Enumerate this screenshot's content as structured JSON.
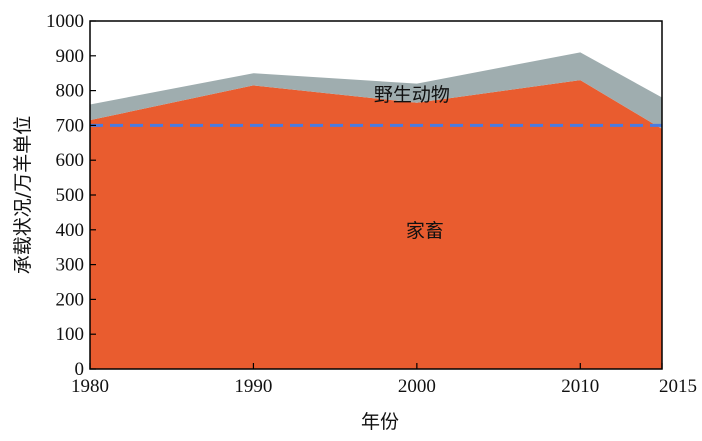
{
  "chart_data": {
    "type": "area",
    "stacked": true,
    "xlabel": "年份",
    "ylabel": "承载状况/万羊单位",
    "x": [
      1980,
      1990,
      2000,
      2010,
      2015
    ],
    "x_tick_labels": [
      "1980",
      "1990",
      "2000",
      "2010",
      "2015"
    ],
    "xlim": [
      1980,
      2015
    ],
    "ylim": [
      0,
      1000
    ],
    "y_ticks": [
      0,
      100,
      200,
      300,
      400,
      500,
      600,
      700,
      800,
      900,
      1000
    ],
    "y_tick_labels": [
      "0",
      "100",
      "200",
      "300",
      "400",
      "500",
      "600",
      "700",
      "800",
      "900",
      "1000"
    ],
    "series": [
      {
        "name": "家畜",
        "values": [
          715,
          815,
          765,
          830,
          690
        ],
        "color": "#e95c2f"
      },
      {
        "name": "野生动物",
        "values": [
          45,
          35,
          55,
          80,
          90
        ],
        "color": "#9fadaf"
      }
    ],
    "reference_line": {
      "value": 700,
      "style": "dashed",
      "color": "#4a7be0"
    },
    "grid": false,
    "legend": "none"
  }
}
